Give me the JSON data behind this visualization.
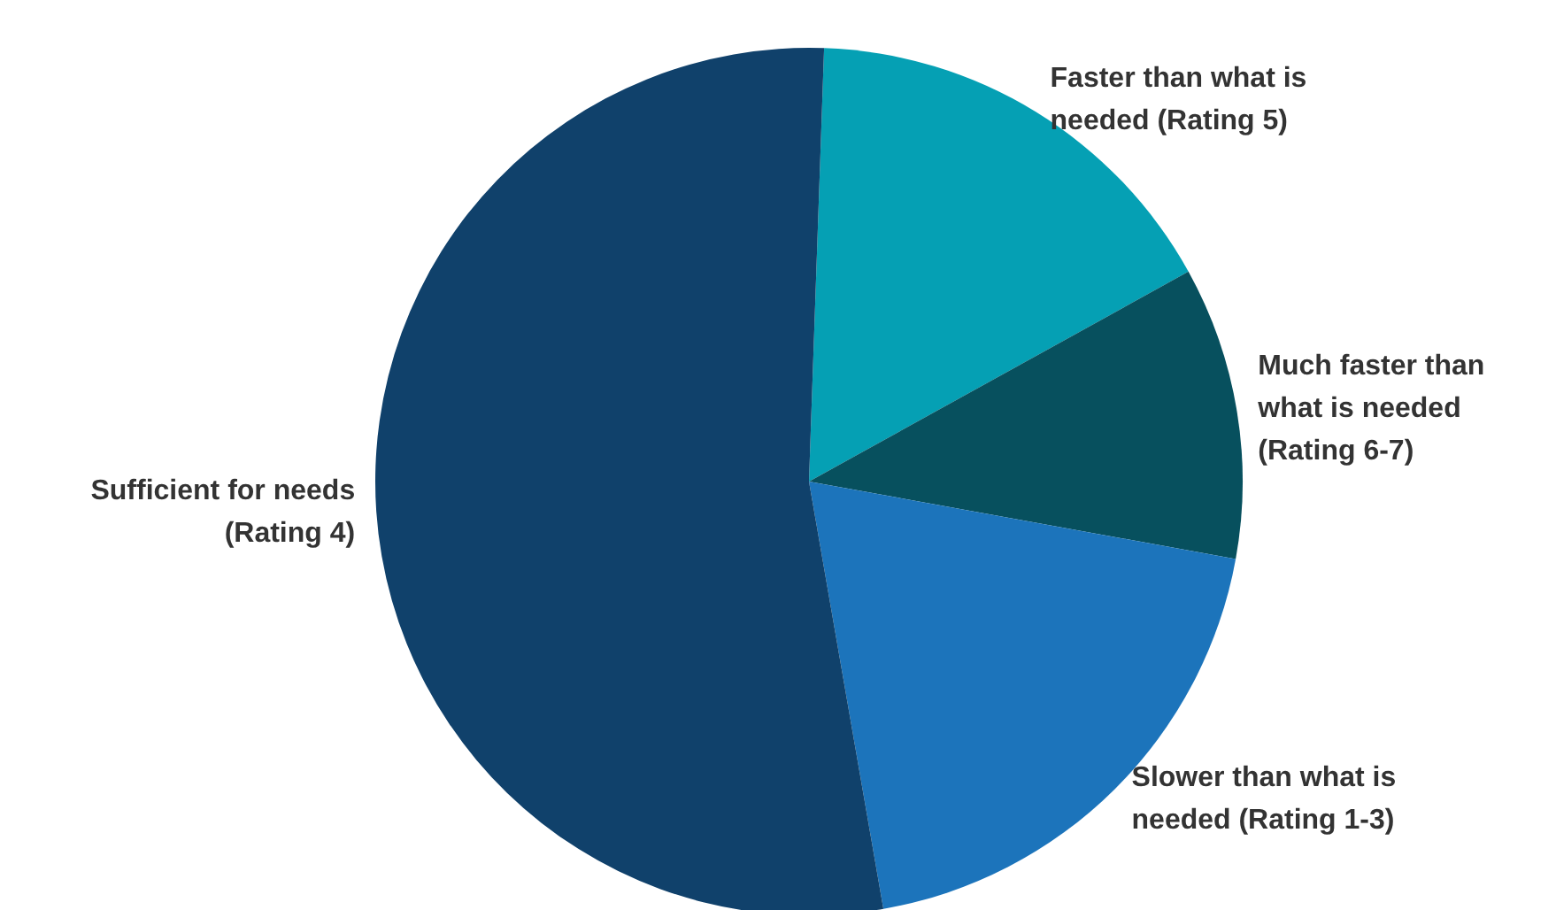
{
  "chart_data": {
    "type": "pie",
    "categories": [
      "Faster than what is\nneeded (Rating 5)",
      "Much faster than\nwhat is needed\n(Rating 6-7)",
      "Slower than what is\nneeded (Rating 1-3)",
      "Sufficient for needs\n(Rating 4)"
    ],
    "values": [
      16.4,
      10.9,
      19.4,
      53.3
    ],
    "colors": [
      "#05a0b4",
      "#07505e",
      "#1c74bb",
      "#10416b"
    ]
  }
}
